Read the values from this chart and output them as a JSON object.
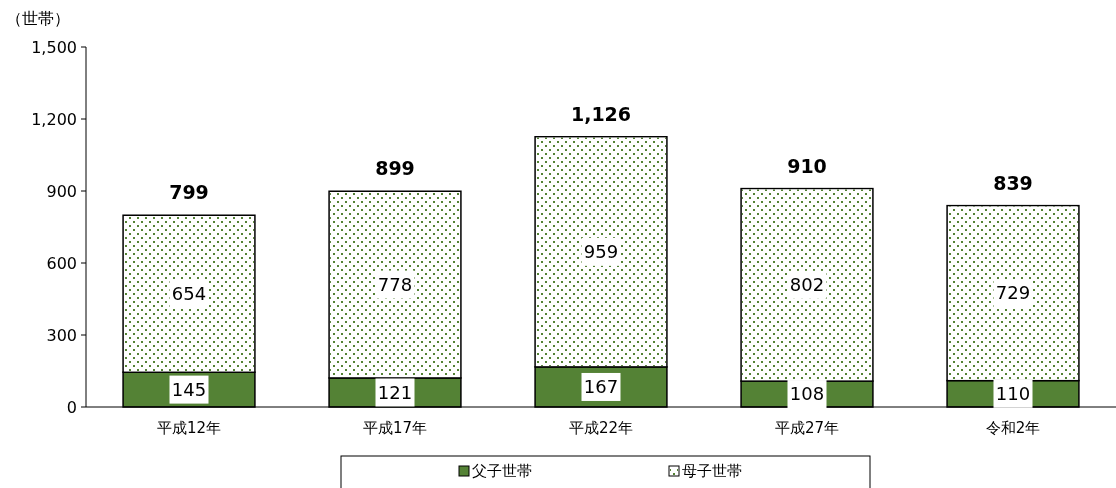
{
  "chart_data": {
    "type": "bar",
    "ylabel": "（世帯）",
    "categories": [
      "平成12年",
      "平成17年",
      "平成22年",
      "平成27年",
      "令和2年"
    ],
    "stacked": true,
    "data_labels": true,
    "legend": "bottom",
    "grid": false,
    "ylim": [
      0,
      1500
    ],
    "yticks": [
      0,
      300,
      600,
      900,
      {
        "value": 1200,
        "label": "1,200"
      },
      {
        "value": 1500,
        "label": "1,500"
      }
    ],
    "totals": [
      "799",
      "899",
      "1,126",
      "910",
      "839"
    ],
    "series": [
      {
        "name": "父子世帯",
        "color": "#548235",
        "values": [
          145,
          121,
          167,
          108,
          110
        ]
      },
      {
        "name": "母子世帯",
        "color": "#ffffff",
        "values": [
          654,
          778,
          959,
          802,
          729
        ]
      }
    ]
  }
}
